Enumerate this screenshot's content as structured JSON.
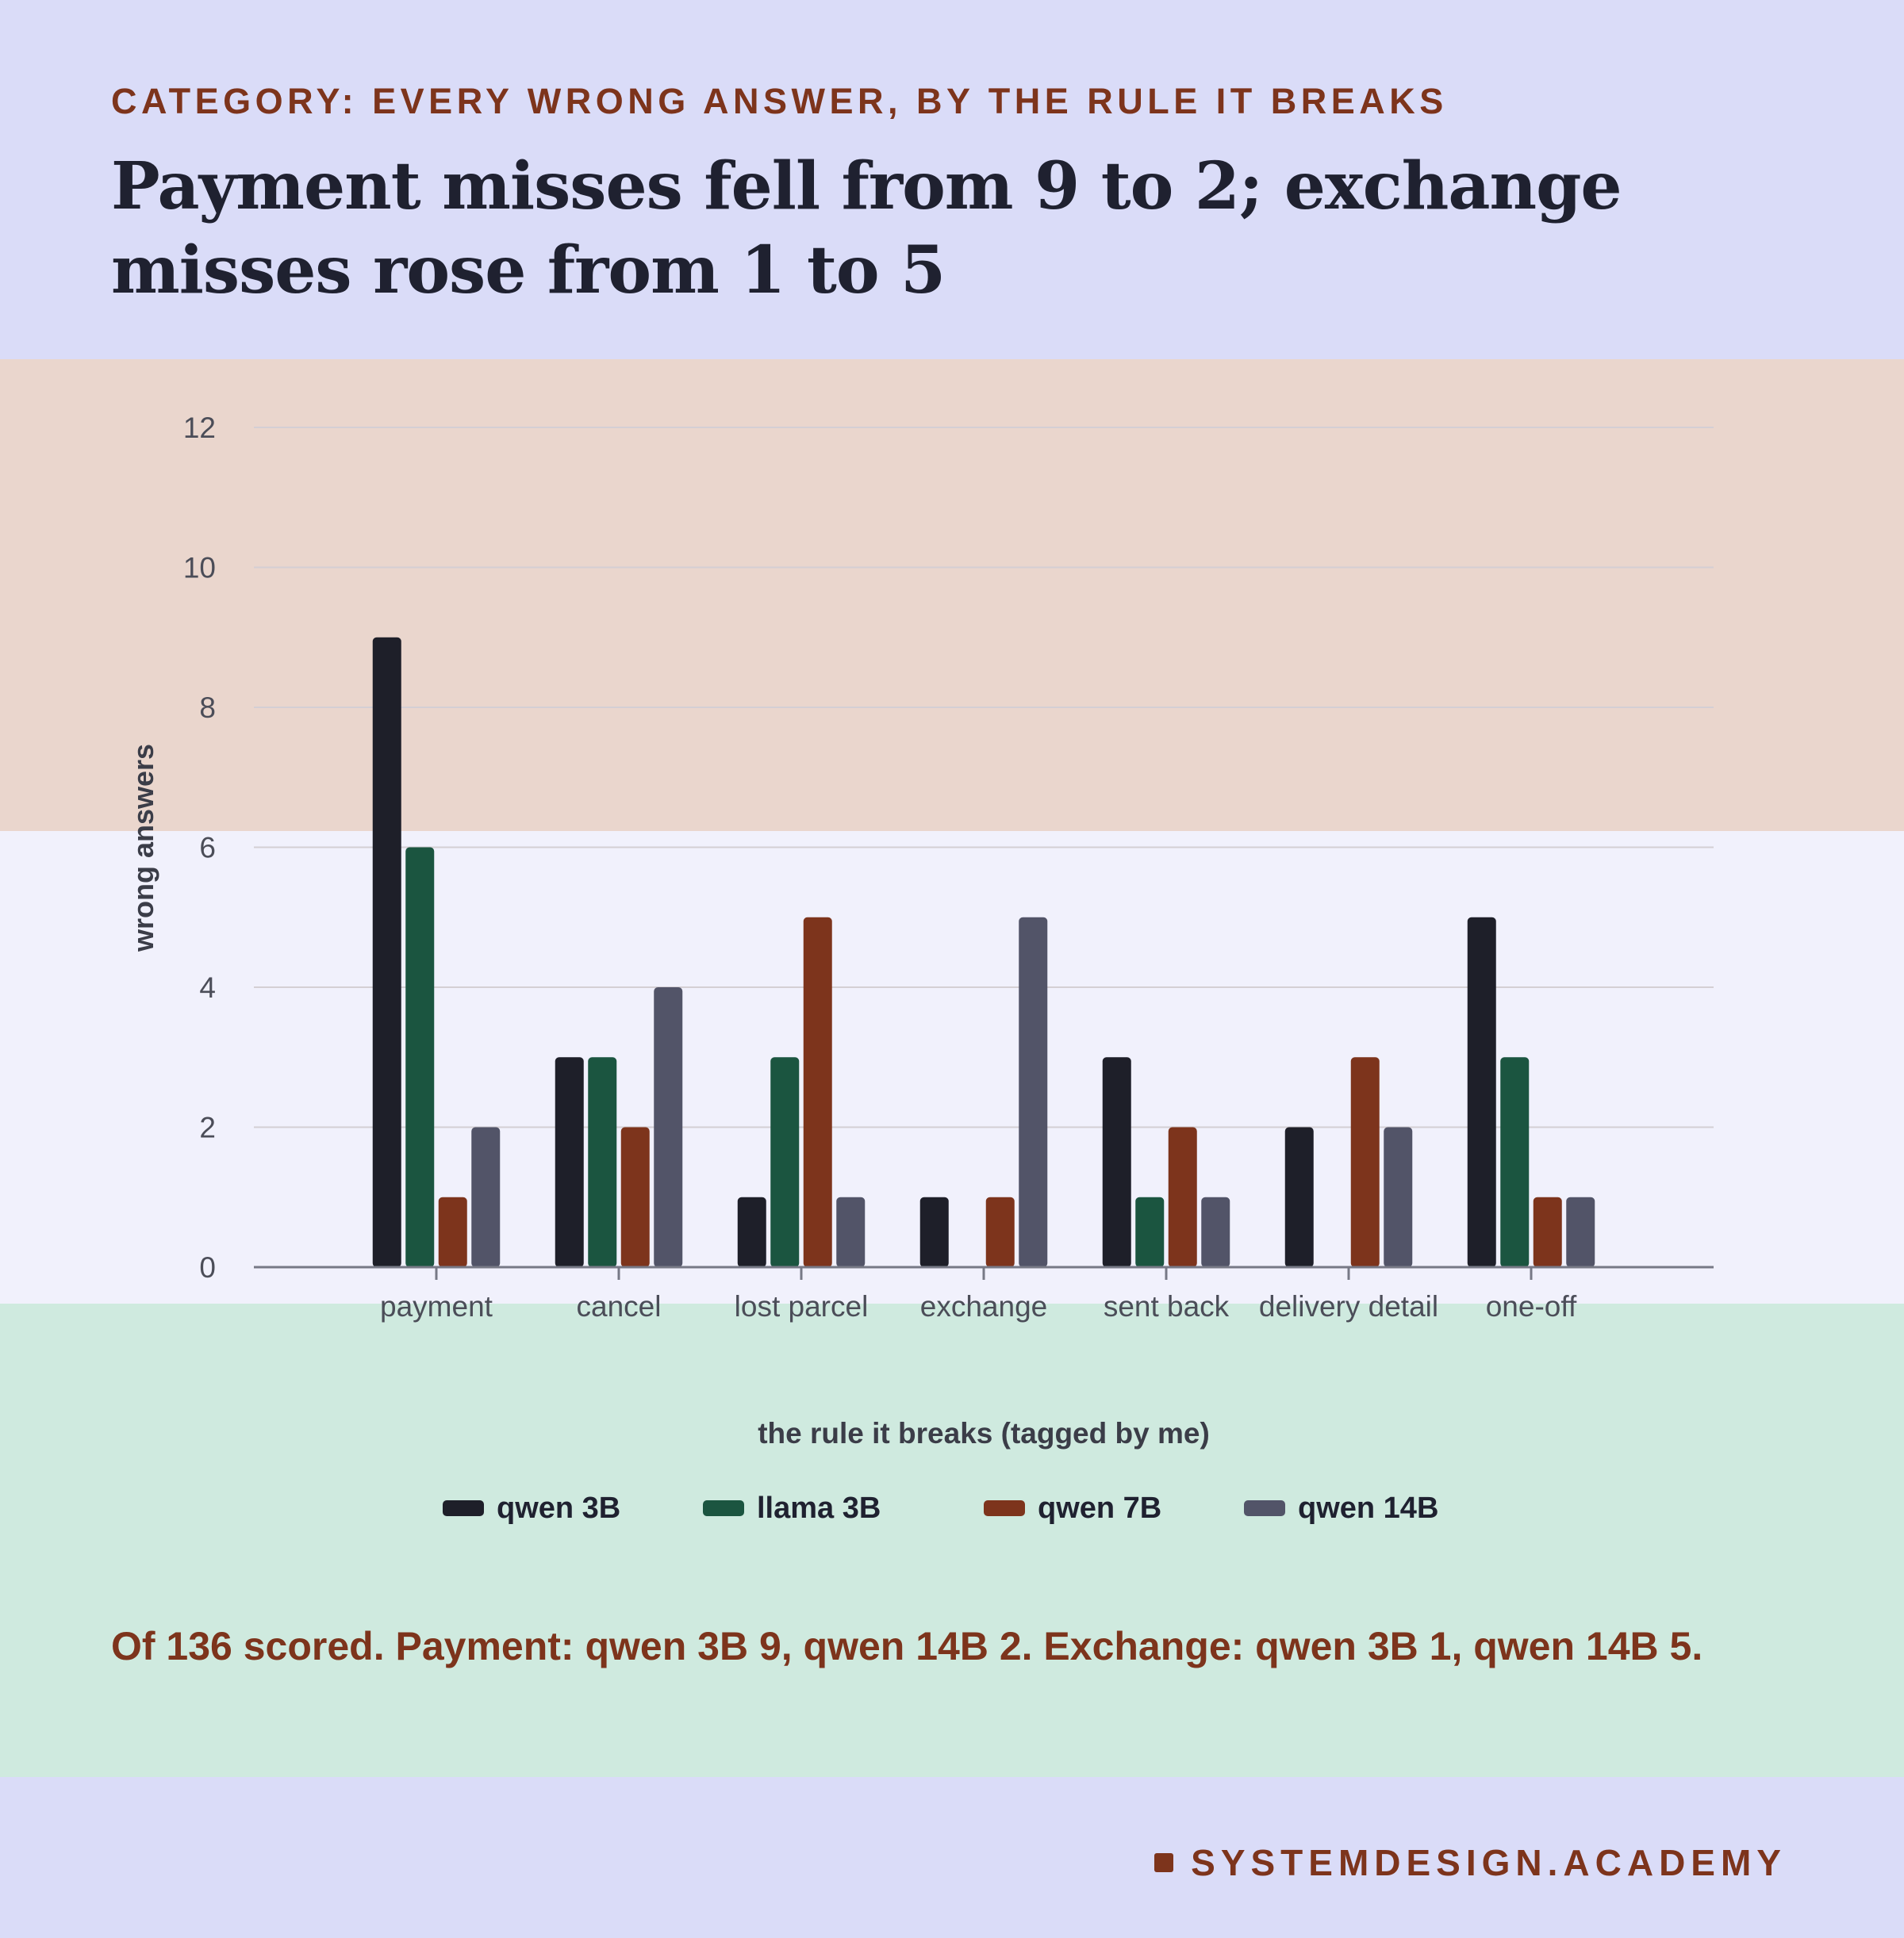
{
  "category": "CATEGORY: EVERY WRONG ANSWER, BY THE RULE IT BREAKS",
  "title": "Payment misses fell from 9 to 2; exchange misses rose from 1 to 5",
  "note": "Of 136 scored. Payment: qwen 3B 9, qwen 14B 2. Exchange: qwen 3B 1, qwen 14B 5.",
  "brand": "SYSTEMDESIGN.ACADEMY",
  "chart_data": {
    "type": "bar",
    "title": "",
    "xlabel": "the rule it breaks (tagged by me)",
    "ylabel": "wrong answers",
    "ylim": [
      0,
      12
    ],
    "yticks": [
      0,
      2,
      4,
      6,
      8,
      10,
      12
    ],
    "grid": true,
    "legend": "bottom",
    "categories": [
      "payment",
      "cancel",
      "lost parcel",
      "exchange",
      "sent back",
      "delivery detail",
      "one-off"
    ],
    "series": [
      {
        "name": "qwen 3B",
        "color": "#1e1f29",
        "values": [
          9,
          3,
          1,
          1,
          3,
          2,
          5
        ]
      },
      {
        "name": "llama 3B",
        "color": "#1b5540",
        "values": [
          6,
          3,
          3,
          0,
          1,
          0,
          3
        ]
      },
      {
        "name": "qwen 7B",
        "color": "#7d341c",
        "values": [
          1,
          2,
          5,
          1,
          2,
          3,
          1
        ]
      },
      {
        "name": "qwen 14B",
        "color": "#525468",
        "values": [
          2,
          4,
          1,
          5,
          1,
          2,
          1
        ]
      }
    ]
  }
}
